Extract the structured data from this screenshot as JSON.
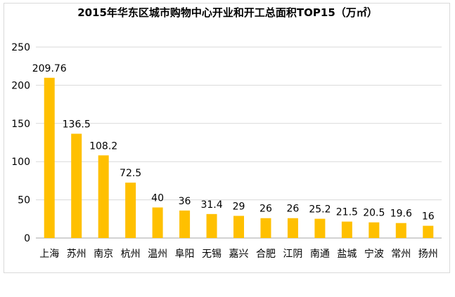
{
  "chart_data": {
    "type": "bar",
    "title": "2015年华东区城市购物中心开业和开工总面积TOP15（万㎡）",
    "xlabel": "",
    "ylabel": "",
    "ylim": [
      0,
      250
    ],
    "yticks": [
      0,
      50,
      100,
      150,
      200,
      250
    ],
    "grid": true,
    "legend": "none",
    "bar_color": "#FFC000",
    "categories": [
      "上海",
      "苏州",
      "南京",
      "杭州",
      "温州",
      "阜阳",
      "无锡",
      "嘉兴",
      "合肥",
      "江阴",
      "南通",
      "盐城",
      "宁波",
      "常州",
      "扬州"
    ],
    "values": [
      209.76,
      136.5,
      108.2,
      72.5,
      40,
      36,
      31.4,
      29,
      26,
      26,
      25.2,
      21.5,
      20.5,
      19.6,
      16
    ],
    "data_labels": [
      "209.76",
      "136.5",
      "108.2",
      "72.5",
      "40",
      "36",
      "31.4",
      "29",
      "26",
      "26",
      "25.2",
      "21.5",
      "20.5",
      "19.6",
      "16"
    ]
  }
}
